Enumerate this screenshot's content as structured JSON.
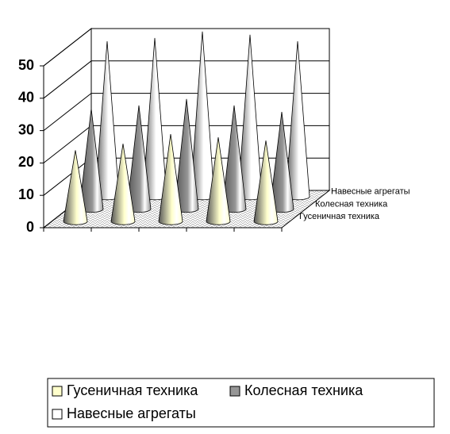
{
  "chart_data": {
    "type": "cone3d",
    "categories": [
      null,
      null,
      null,
      null,
      null
    ],
    "series": [
      {
        "name": "Гусеничная техника",
        "color": "#ffffcc",
        "values": [
          22,
          24,
          27,
          26,
          25
        ]
      },
      {
        "name": "Колесная техника",
        "color": "#969696",
        "values": [
          31,
          32,
          34,
          32,
          30
        ]
      },
      {
        "name": "Навесные агрегаты",
        "color": "#ffffff",
        "values": [
          48,
          49,
          51,
          50,
          48
        ]
      }
    ],
    "ylim": [
      0,
      50
    ],
    "yticks": [
      0,
      10,
      20,
      30,
      40,
      50
    ],
    "grid": true
  }
}
